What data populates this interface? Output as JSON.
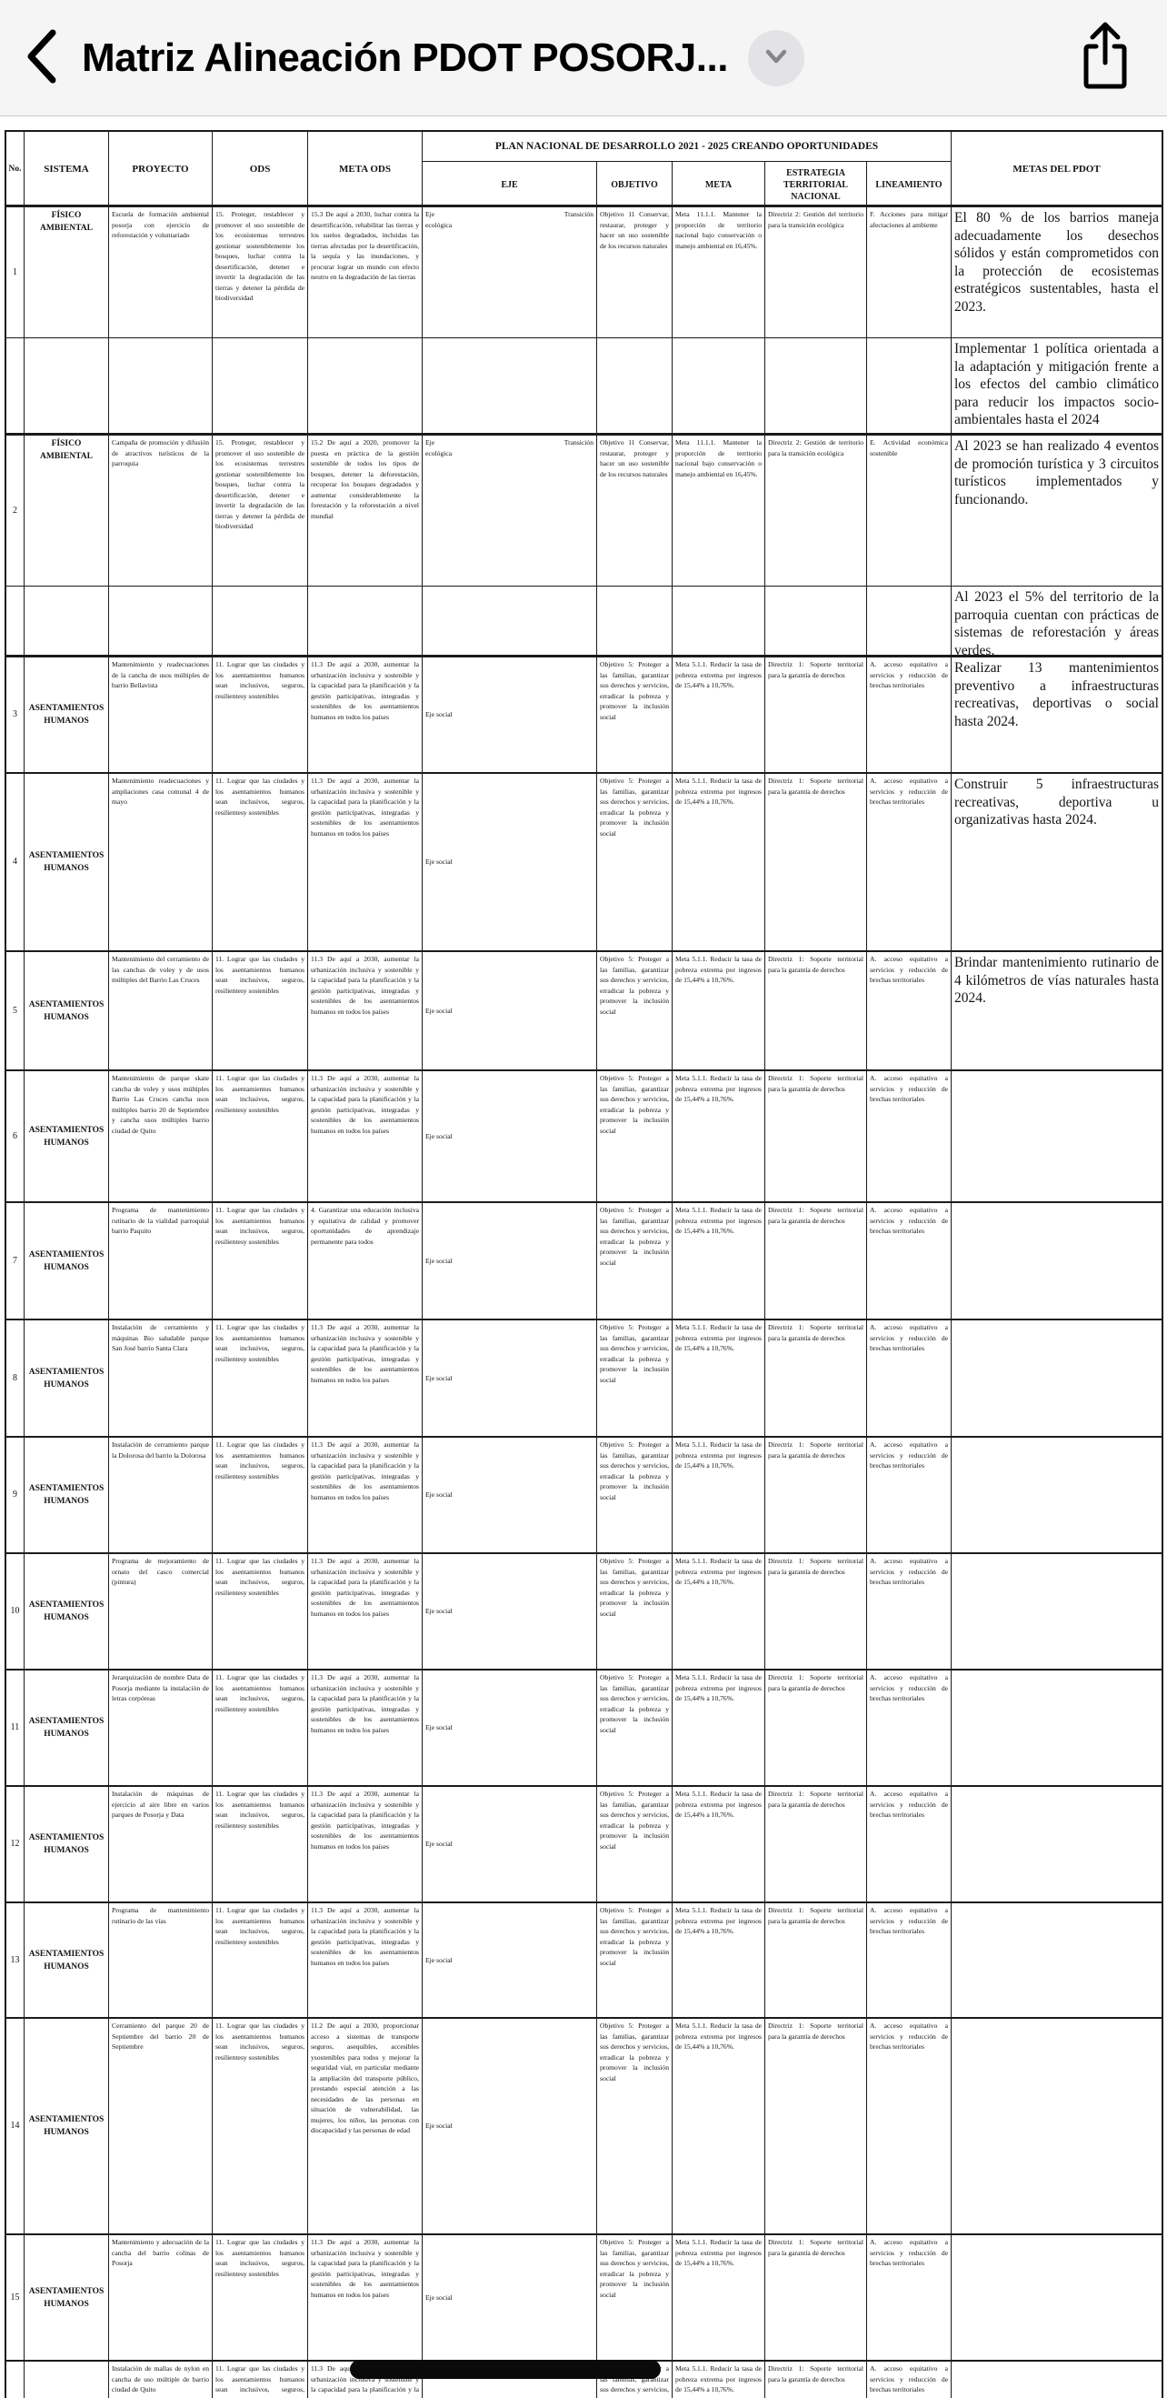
{
  "nav": {
    "title": "Matriz Alineación PDOT POSORJ...",
    "back_icon": "chevron-left",
    "title_badge_icon": "chevron-down",
    "share_icon": "ios-share"
  },
  "colors": {
    "nav_background": "#f5f5f6",
    "document_background": "#ffffff",
    "table_border": "#1b1b1b",
    "redaction_bar": "#0a0a0a",
    "badge_background": "#e3e3e6",
    "badge_chevron": "#85858a"
  },
  "table": {
    "headers": {
      "no": "No.",
      "sistema": "SISTEMA",
      "proyecto": "PROYECTO",
      "ods": "ODS",
      "meta_ods": "META ODS",
      "pnd": "PLAN NACIONAL DE DESARROLLO 2021 - 2025 CREANDO OPORTUNIDADES",
      "eje": "EJE",
      "objetivo": "OBJETIVO",
      "meta": "META",
      "estrategia": "ESTRATEGIA TERRITORIAL NACIONAL",
      "lineamiento": "LINEAMIENTO",
      "metas_pdot": "METAS DEL PDOT"
    },
    "defs": {
      "fa": "FÍSICO AMBIENTAL",
      "ah": "ASENTAMIENTOS HUMANOS",
      "ods15": "15. Proteger, restablecer y promover el uso sostenible de los ecosistemas terrestres gestionar sosteniblemente los bosques, luchar contra la desertificación, detener e invertir la degradación de las tierras y detener la pérdida de biodiversidad",
      "ods11": "11. Lograr que las ciudades y los asentamientos humanos sean inclusivos, seguros, resilientesy sostenibles",
      "m153": "15.3 De aquí a 2030, luchar contra la desertificación, rehabilitar las tierras y los suelos degradados, incluidas las tierras afectadas por la desertificación, la sequía y las inundaciones, y procurar lograr un mundo con efecto neutro en la degradación de las tierras",
      "m152": "15.2 De aquí a 2020, promover la puesta en práctica de la gestión sostenible de todos los tipos de bosques, detener la deforestación, recuperar los bosques degradados y aumentar considerablemente la forestación y la reforestación a nivel mundial",
      "m113": "11.3 De aquí a 2030, aumentar la urbanización inclusiva y sostenible y la capacidad para la planificación y la gestión participativas, integradas y sostenibles de los asentamientos humanos en todos los países",
      "m112": "11.2 De aquí a 2030, proporcionar acceso a sistemas de transporte seguros, asequibles, accesibles ysostenibles para todos y mejorar la seguridad vial, en particular mediante la ampliación del transporte público, prestando especial atención a las necesidades de las personas en situación de vulnerabilidad, las mujeres, los niños, las personas con discapacidad y las personas de edad",
      "m4": "4. Garantizar una educación inclusiva y equitativa de calidad y promover oportunidades de aprendizaje permanente para todos",
      "ejeT": "Eje Transición ecológica",
      "ejeS": "Eje social",
      "obj11": "Objetivo 11 Conservar, restaurar, proteger y hacer un uso sostenible de los recursos naturales",
      "obj5": "Objetivo 5: Proteger a las familias, garantizar sus derechos y servicios, erradicar la pobreza y promover la inclusión social",
      "meta1111": "Meta 11.1.1. Mantener la proporción de territorio nacional bajo conservación o manejo ambiental en 16,45%.",
      "meta511": "Meta 5.1.1. Reducir la tasa de pobreza extrema por ingresos de 15,44% a 10,76%.",
      "dir2a": "Directriz 2: Gestión del territorio para la transición ecológica",
      "dir2b": "Directriz 2: Gestión de territorio para la transición ecológica",
      "dir1": "Directriz 1: Soporte territorial para la garantía de derechos",
      "linF": "F. Acciones para mitigar afectaciones al ambiente",
      "linE": "E. Actividad económica sostenible",
      "linA": "A. acceso equitativo a servicios y reducción de brechas territoriales"
    },
    "rows": [
      {
        "no": "1",
        "sistema": "$fa",
        "proyecto": "Escuela de formación ambiental posorja con ejercicio de reforestación y voluntariado",
        "ods": "$ods15",
        "meta_ods": "$m153",
        "eje": "$ejeT",
        "objetivo": "$obj11",
        "meta": "$meta1111",
        "estrategia": "$dir2a",
        "lineamiento": "$linF",
        "metas_pdot": "El 80 % de los barrios maneja adecuadamente los desechos sólidos y están comprometidos con la protección de ecosistemas estratégicos sustentables, hasta el 2023."
      },
      {
        "no": "",
        "sistema": "",
        "proyecto": "",
        "ods": "",
        "meta_ods": "",
        "eje": "",
        "objetivo": "",
        "meta": "",
        "estrategia": "",
        "lineamiento": "",
        "metas_pdot": "Implementar 1 política orientada a la adaptación y mitigación frente a los efectos del cambio climático para reducir los impactos socio-ambientales hasta el 2024"
      },
      {
        "no": "2",
        "sistema": "$fa",
        "proyecto": "Campaña de promoción y difusión de atractivos turísticos de la parroquia",
        "ods": "$ods15",
        "meta_ods": "$m152",
        "eje": "$ejeT",
        "objetivo": "$obj11",
        "meta": "$meta1111",
        "estrategia": "$dir2b",
        "lineamiento": "$linE",
        "metas_pdot": "Al 2023 se han realizado 4 eventos de promoción turística y 3 circuitos turísticos implementados y funcionando."
      },
      {
        "no": "",
        "sistema": "",
        "proyecto": "",
        "ods": "",
        "meta_ods": "",
        "eje": "",
        "objetivo": "",
        "meta": "",
        "estrategia": "",
        "lineamiento": "",
        "metas_pdot": "Al 2023 el 5% del territorio de la parroquia cuentan con prácticas de sistemas de reforestación y áreas verdes."
      },
      {
        "no": "3",
        "sistema": "$ah",
        "proyecto": "Mantenimiento y readecuaciones de la cancha de usos múltiples de barrio Bellavista",
        "ods": "$ods11",
        "meta_ods": "$m113",
        "eje": "$ejeS",
        "objetivo": "$obj5",
        "meta": "$meta511",
        "estrategia": "$dir1",
        "lineamiento": "$linA",
        "metas_pdot": "Realizar 13 mantenimientos preventivo a infraestructuras recreativas, deportivas o social hasta 2024."
      },
      {
        "no": "4",
        "sistema": "$ah",
        "proyecto": "Mantenimiento readecuaciones y ampliaciones casa comunal 4 de mayo",
        "ods": "$ods11",
        "meta_ods": "$m113",
        "eje": "$ejeS",
        "objetivo": "$obj5",
        "meta": "$meta511",
        "estrategia": "$dir1",
        "lineamiento": "$linA",
        "metas_pdot": "Construir 5 infraestructuras recreativas, deportiva u organizativas hasta 2024."
      },
      {
        "no": "5",
        "sistema": "$ah",
        "proyecto": "Mantenimiento del cerramiento de las canchas de voley y de usos múltiples del Barrio Las Cruces",
        "ods": "$ods11",
        "meta_ods": "$m113",
        "eje": "$ejeS",
        "objetivo": "$obj5",
        "meta": "$meta511",
        "estrategia": "$dir1",
        "lineamiento": "$linA",
        "metas_pdot": "Brindar mantenimiento rutinario de 4 kilómetros de vías naturales hasta 2024."
      },
      {
        "no": "6",
        "sistema": "$ah",
        "proyecto": "Mantenimiento de parque skate cancha de voley y usos múltiples Barrio Las Cruces cancha usos múltiples barrio 20 de Septiembre y cancha usos múltiples barrio ciudad de Quito",
        "ods": "$ods11",
        "meta_ods": "$m113",
        "eje": "$ejeS",
        "objetivo": "$obj5",
        "meta": "$meta511",
        "estrategia": "$dir1",
        "lineamiento": "$linA",
        "metas_pdot": ""
      },
      {
        "no": "7",
        "sistema": "$ah",
        "proyecto": "Programa de mantenimiento rutinario de la vialidad parroquial barrio Paquito",
        "ods": "$ods11",
        "meta_ods": "$m4",
        "eje": "$ejeS",
        "objetivo": "$obj5",
        "meta": "$meta511",
        "estrategia": "$dir1",
        "lineamiento": "$linA",
        "metas_pdot": ""
      },
      {
        "no": "8",
        "sistema": "$ah",
        "proyecto": "Instalación de cerramiento y máquinas Bio saludable parque San José barrio Santa Clara",
        "ods": "$ods11",
        "meta_ods": "$m113",
        "eje": "$ejeS",
        "objetivo": "$obj5",
        "meta": "$meta511",
        "estrategia": "$dir1",
        "lineamiento": "$linA",
        "metas_pdot": ""
      },
      {
        "no": "9",
        "sistema": "$ah",
        "proyecto": "Instalación de cerramiento parque la Dolorosa del barrio la Dolorosa",
        "ods": "$ods11",
        "meta_ods": "$m113",
        "eje": "$ejeS",
        "objetivo": "$obj5",
        "meta": "$meta511",
        "estrategia": "$dir1",
        "lineamiento": "$linA",
        "metas_pdot": ""
      },
      {
        "no": "10",
        "sistema": "$ah",
        "proyecto": "Programa de mejoramiento de ornato del casco comercial (pintura)",
        "ods": "$ods11",
        "meta_ods": "$m113",
        "eje": "$ejeS",
        "objetivo": "$obj5",
        "meta": "$meta511",
        "estrategia": "$dir1",
        "lineamiento": "$linA",
        "metas_pdot": ""
      },
      {
        "no": "11",
        "sistema": "$ah",
        "proyecto": "Jerarquización de nombre Data de Posorja mediante la instalación de letras corpóreas",
        "ods": "$ods11",
        "meta_ods": "$m113",
        "eje": "$ejeS",
        "objetivo": "$obj5",
        "meta": "$meta511",
        "estrategia": "$dir1",
        "lineamiento": "$linA",
        "metas_pdot": ""
      },
      {
        "no": "12",
        "sistema": "$ah",
        "proyecto": "Instalación de máquinas de ejercicio al aire libre en varios parques de Posorja y Data",
        "ods": "$ods11",
        "meta_ods": "$m113",
        "eje": "$ejeS",
        "objetivo": "$obj5",
        "meta": "$meta511",
        "estrategia": "$dir1",
        "lineamiento": "$linA",
        "metas_pdot": ""
      },
      {
        "no": "13",
        "sistema": "$ah",
        "proyecto": "Programa de mantenimiento rutinario de las vías",
        "ods": "$ods11",
        "meta_ods": "$m113",
        "eje": "$ejeS",
        "objetivo": "$obj5",
        "meta": "$meta511",
        "estrategia": "$dir1",
        "lineamiento": "$linA",
        "metas_pdot": ""
      },
      {
        "no": "14",
        "sistema": "$ah",
        "proyecto": "Cerramiento del parque 20 de Septiembre del barrio 20 de Septiembre",
        "ods": "$ods11",
        "meta_ods": "$m112",
        "eje": "$ejeS",
        "objetivo": "$obj5",
        "meta": "$meta511",
        "estrategia": "$dir1",
        "lineamiento": "$linA",
        "metas_pdot": ""
      },
      {
        "no": "15",
        "sistema": "$ah",
        "proyecto": "Mantenimiento y adecuación de la cancha del barrio colinas de Posorja",
        "ods": "$ods11",
        "meta_ods": "$m113",
        "eje": "$ejeS",
        "objetivo": "$obj5",
        "meta": "$meta511",
        "estrategia": "$dir1",
        "lineamiento": "$linA",
        "metas_pdot": ""
      },
      {
        "no": "",
        "sistema": "$ah",
        "proyecto": "Instalación de mallas de nylon en cancha de uso múltiple de barrio ciudad de Quito",
        "ods": "$ods11",
        "meta_ods": "$m113",
        "eje": "$ejeS",
        "objetivo": "$obj5",
        "meta": "$meta511",
        "estrategia": "$dir1",
        "lineamiento": "$linA",
        "metas_pdot": ""
      }
    ]
  }
}
